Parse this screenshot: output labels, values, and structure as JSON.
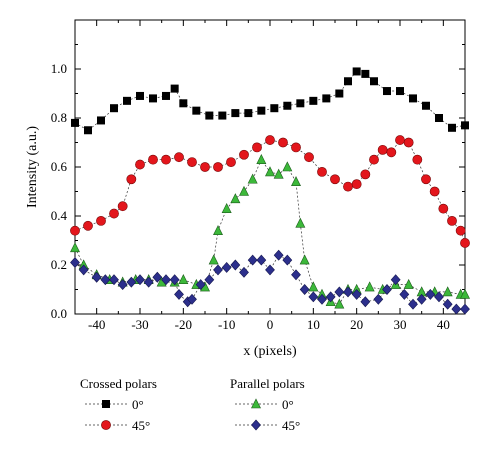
{
  "chart_data": {
    "type": "scatter",
    "xlabel": "x (pixels)",
    "ylabel": "Intensity (a.u.)",
    "xlim": [
      -45,
      45
    ],
    "ylim": [
      0.0,
      1.2
    ],
    "x_ticks": [
      -40,
      -30,
      -20,
      -10,
      0,
      10,
      20,
      30,
      40
    ],
    "x_tick_labels": [
      "-40",
      "-30",
      "-20",
      "-10",
      "0",
      "10",
      "20",
      "30",
      "40"
    ],
    "y_ticks": [
      0.0,
      0.2,
      0.4,
      0.6,
      0.8,
      1.0
    ],
    "y_tick_labels": [
      "0.0",
      "0.2",
      "0.4",
      "0.6",
      "0.8",
      "1.0"
    ],
    "grid": false,
    "legend_placement": "below",
    "legend_groups": [
      {
        "title": "Crossed polars",
        "entries": [
          {
            "label": "0°",
            "series": 0
          },
          {
            "label": "45°",
            "series": 1
          }
        ]
      },
      {
        "title": "Parallel polars",
        "entries": [
          {
            "label": "0°",
            "series": 2
          },
          {
            "label": "45°",
            "series": 3
          }
        ]
      }
    ],
    "series": [
      {
        "marker": "square",
        "color": "#000000",
        "points": [
          [
            -45,
            0.78
          ],
          [
            -42,
            0.75
          ],
          [
            -39,
            0.79
          ],
          [
            -36,
            0.84
          ],
          [
            -33,
            0.87
          ],
          [
            -30,
            0.89
          ],
          [
            -27,
            0.88
          ],
          [
            -24,
            0.89
          ],
          [
            -22,
            0.92
          ],
          [
            -20,
            0.86
          ],
          [
            -17,
            0.83
          ],
          [
            -14,
            0.81
          ],
          [
            -11,
            0.81
          ],
          [
            -8,
            0.82
          ],
          [
            -5,
            0.82
          ],
          [
            -2,
            0.83
          ],
          [
            1,
            0.84
          ],
          [
            4,
            0.85
          ],
          [
            7,
            0.86
          ],
          [
            10,
            0.87
          ],
          [
            13,
            0.88
          ],
          [
            16,
            0.9
          ],
          [
            18,
            0.95
          ],
          [
            20,
            0.99
          ],
          [
            22,
            0.98
          ],
          [
            24,
            0.95
          ],
          [
            27,
            0.91
          ],
          [
            30,
            0.91
          ],
          [
            33,
            0.88
          ],
          [
            36,
            0.85
          ],
          [
            39,
            0.8
          ],
          [
            42,
            0.76
          ],
          [
            45,
            0.77
          ]
        ]
      },
      {
        "marker": "circle",
        "color": "#e3161c",
        "points": [
          [
            -45,
            0.34
          ],
          [
            -42,
            0.36
          ],
          [
            -39,
            0.38
          ],
          [
            -36,
            0.41
          ],
          [
            -34,
            0.44
          ],
          [
            -32,
            0.55
          ],
          [
            -30,
            0.61
          ],
          [
            -27,
            0.63
          ],
          [
            -24,
            0.63
          ],
          [
            -21,
            0.64
          ],
          [
            -18,
            0.62
          ],
          [
            -15,
            0.6
          ],
          [
            -12,
            0.6
          ],
          [
            -9,
            0.62
          ],
          [
            -6,
            0.65
          ],
          [
            -3,
            0.68
          ],
          [
            0,
            0.71
          ],
          [
            3,
            0.7
          ],
          [
            6,
            0.68
          ],
          [
            9,
            0.64
          ],
          [
            12,
            0.58
          ],
          [
            15,
            0.55
          ],
          [
            18,
            0.52
          ],
          [
            20,
            0.53
          ],
          [
            22,
            0.57
          ],
          [
            24,
            0.63
          ],
          [
            26,
            0.67
          ],
          [
            28,
            0.66
          ],
          [
            30,
            0.71
          ],
          [
            32,
            0.7
          ],
          [
            34,
            0.63
          ],
          [
            36,
            0.55
          ],
          [
            38,
            0.5
          ],
          [
            40,
            0.43
          ],
          [
            42,
            0.38
          ],
          [
            44,
            0.34
          ],
          [
            45,
            0.29
          ]
        ]
      },
      {
        "marker": "triangle",
        "color": "#3cb83a",
        "dashed": true,
        "points": [
          [
            -45,
            0.27
          ],
          [
            -43,
            0.2
          ],
          [
            -40,
            0.16
          ],
          [
            -37,
            0.14
          ],
          [
            -34,
            0.13
          ],
          [
            -31,
            0.14
          ],
          [
            -28,
            0.14
          ],
          [
            -25,
            0.13
          ],
          [
            -22,
            0.13
          ],
          [
            -20,
            0.14
          ],
          [
            -17,
            0.12
          ],
          [
            -15,
            0.11
          ],
          [
            -13,
            0.22
          ],
          [
            -12,
            0.34
          ],
          [
            -10,
            0.43
          ],
          [
            -8,
            0.47
          ],
          [
            -6,
            0.5
          ],
          [
            -4,
            0.55
          ],
          [
            -2,
            0.63
          ],
          [
            0,
            0.58
          ],
          [
            2,
            0.57
          ],
          [
            4,
            0.6
          ],
          [
            6,
            0.54
          ],
          [
            7,
            0.37
          ],
          [
            8,
            0.22
          ],
          [
            10,
            0.11
          ],
          [
            12,
            0.08
          ],
          [
            14,
            0.05
          ],
          [
            16,
            0.04
          ],
          [
            18,
            0.1
          ],
          [
            20,
            0.1
          ],
          [
            23,
            0.11
          ],
          [
            26,
            0.1
          ],
          [
            29,
            0.12
          ],
          [
            32,
            0.12
          ],
          [
            35,
            0.09
          ],
          [
            38,
            0.09
          ],
          [
            41,
            0.09
          ],
          [
            44,
            0.08
          ],
          [
            45,
            0.08
          ]
        ]
      },
      {
        "marker": "diamond",
        "color": "#2c2f8c",
        "dashed": true,
        "points": [
          [
            -45,
            0.21
          ],
          [
            -43,
            0.18
          ],
          [
            -40,
            0.15
          ],
          [
            -38,
            0.14
          ],
          [
            -36,
            0.14
          ],
          [
            -34,
            0.12
          ],
          [
            -32,
            0.13
          ],
          [
            -30,
            0.14
          ],
          [
            -28,
            0.13
          ],
          [
            -26,
            0.15
          ],
          [
            -24,
            0.14
          ],
          [
            -22,
            0.14
          ],
          [
            -21,
            0.08
          ],
          [
            -19,
            0.05
          ],
          [
            -18,
            0.06
          ],
          [
            -16,
            0.12
          ],
          [
            -14,
            0.14
          ],
          [
            -12,
            0.18
          ],
          [
            -10,
            0.19
          ],
          [
            -8,
            0.2
          ],
          [
            -6,
            0.17
          ],
          [
            -4,
            0.22
          ],
          [
            -2,
            0.22
          ],
          [
            0,
            0.18
          ],
          [
            2,
            0.24
          ],
          [
            4,
            0.22
          ],
          [
            6,
            0.16
          ],
          [
            8,
            0.1
          ],
          [
            10,
            0.07
          ],
          [
            12,
            0.06
          ],
          [
            14,
            0.07
          ],
          [
            16,
            0.09
          ],
          [
            18,
            0.09
          ],
          [
            20,
            0.08
          ],
          [
            22,
            0.05
          ],
          [
            25,
            0.06
          ],
          [
            27,
            0.1
          ],
          [
            29,
            0.14
          ],
          [
            31,
            0.08
          ],
          [
            33,
            0.04
          ],
          [
            35,
            0.06
          ],
          [
            37,
            0.08
          ],
          [
            39,
            0.07
          ],
          [
            41,
            0.04
          ],
          [
            43,
            0.02
          ],
          [
            45,
            0.02
          ]
        ]
      }
    ]
  }
}
